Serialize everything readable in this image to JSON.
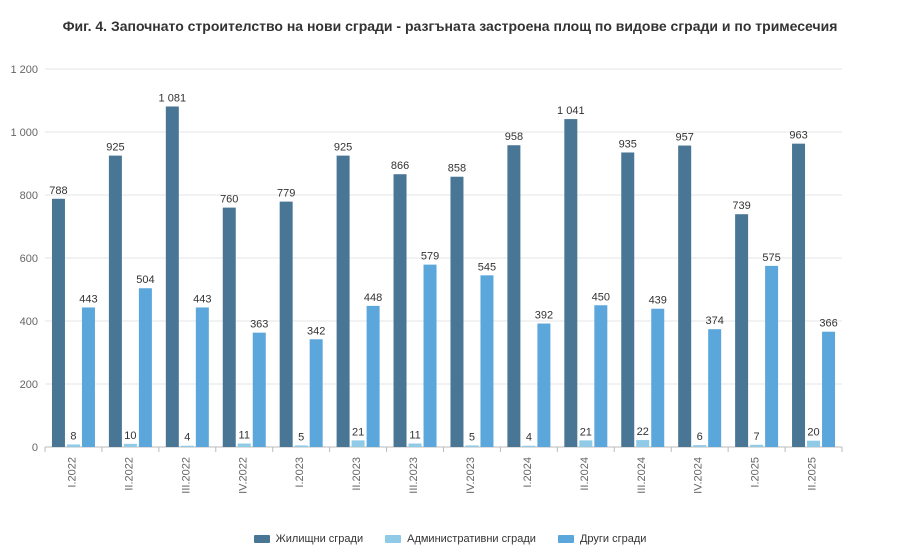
{
  "title": "Фиг. 4. Започнато строителство на нови сгради - разгъната застроена площ по видове сгради и по тримесечия",
  "chart_data": {
    "type": "bar",
    "title": "Фиг. 4. Започнато строителство на нови сгради - разгъната застроена площ по видове сгради и по тримесечия",
    "xlabel": "",
    "ylabel": "",
    "ylim": [
      0,
      1200
    ],
    "y_ticks": [
      "0",
      "200",
      "400",
      "600",
      "800",
      "1 000",
      "1 200"
    ],
    "grid": true,
    "legend_position": "bottom",
    "categories": [
      "I.2022",
      "II.2022",
      "III.2022",
      "IV.2022",
      "I.2023",
      "II.2023",
      "III.2023",
      "IV.2023",
      "I.2024",
      "II.2024",
      "III.2024",
      "IV.2024",
      "I.2025",
      "II.2025"
    ],
    "series": [
      {
        "name": "Жилищни сгради",
        "color": "#4a7696",
        "values": [
          788,
          925,
          1081,
          760,
          779,
          925,
          866,
          858,
          958,
          1041,
          935,
          957,
          739,
          963
        ],
        "labels": [
          "788",
          "925",
          "1 081",
          "760",
          "779",
          "925",
          "866",
          "858",
          "958",
          "1 041",
          "935",
          "957",
          "739",
          "963"
        ]
      },
      {
        "name": "Административни сгради",
        "color": "#8fcbe6",
        "values": [
          8,
          10,
          4,
          11,
          5,
          21,
          11,
          5,
          4,
          21,
          22,
          6,
          7,
          20
        ],
        "labels": [
          "8",
          "10",
          "4",
          "11",
          "5",
          "21",
          "11",
          "5",
          "4",
          "21",
          "22",
          "6",
          "7",
          "20"
        ]
      },
      {
        "name": "Други сгради",
        "color": "#5ba7dc",
        "values": [
          443,
          504,
          443,
          363,
          342,
          448,
          579,
          545,
          392,
          450,
          439,
          374,
          575,
          366
        ],
        "labels": [
          "443",
          "504",
          "443",
          "363",
          "342",
          "448",
          "579",
          "545",
          "392",
          "450",
          "439",
          "374",
          "575",
          "366"
        ]
      }
    ]
  }
}
